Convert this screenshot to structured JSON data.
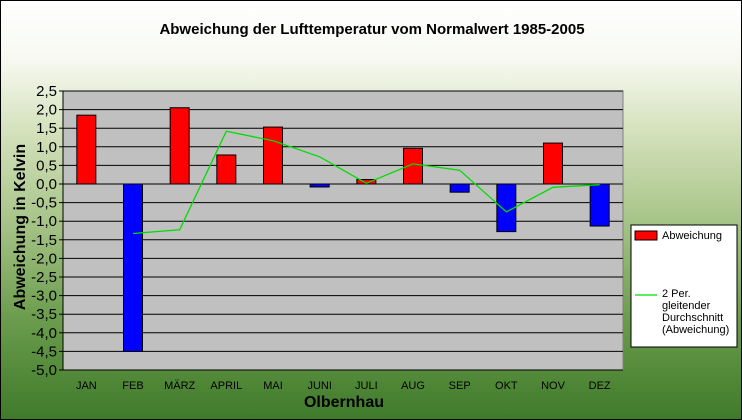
{
  "chart_data": {
    "type": "bar",
    "title": "Abweichung der Lufttemperatur vom Normalwert 1985-2005",
    "xlabel": "Olbernhau",
    "ylabel": "Abweichung in Kelvin",
    "categories": [
      "JAN",
      "FEB",
      "MÄRZ",
      "APRIL",
      "MAI",
      "JUNI",
      "JULI",
      "AUG",
      "SEP",
      "OKT",
      "NOV",
      "DEZ"
    ],
    "ylim": [
      -5.0,
      2.5
    ],
    "ytick_step": 0.5,
    "ytick_labels": [
      "2,5",
      "2,0",
      "1,5",
      "1,0",
      "0,5",
      "0,0",
      "-0,5",
      "-1,0",
      "-1,5",
      "-2,0",
      "-2,5",
      "-3,0",
      "-3,5",
      "-4,0",
      "-4,5",
      "-5,0"
    ],
    "grid": true,
    "legend_position": "right",
    "series": [
      {
        "name": "Abweichung",
        "kind": "bar",
        "values": [
          1.85,
          -4.5,
          2.05,
          0.78,
          1.53,
          -0.08,
          0.12,
          0.96,
          -0.22,
          -1.28,
          1.1,
          -1.13
        ],
        "color_positive": "#ff0000",
        "color_negative": "#0000ff"
      },
      {
        "name": "2 Per. gleitender Durchschnitt (Abweichung)",
        "kind": "line",
        "values": [
          null,
          -1.33,
          -1.23,
          1.42,
          1.16,
          0.73,
          0.02,
          0.54,
          0.37,
          -0.75,
          -0.09,
          -0.02
        ],
        "color": "#00dd00"
      }
    ],
    "legend_entries": [
      "Abweichung",
      "2 Per.",
      "gleitender",
      "Durchschnitt",
      "(Abweichung)"
    ],
    "plot_background": "#c0c0c0"
  }
}
